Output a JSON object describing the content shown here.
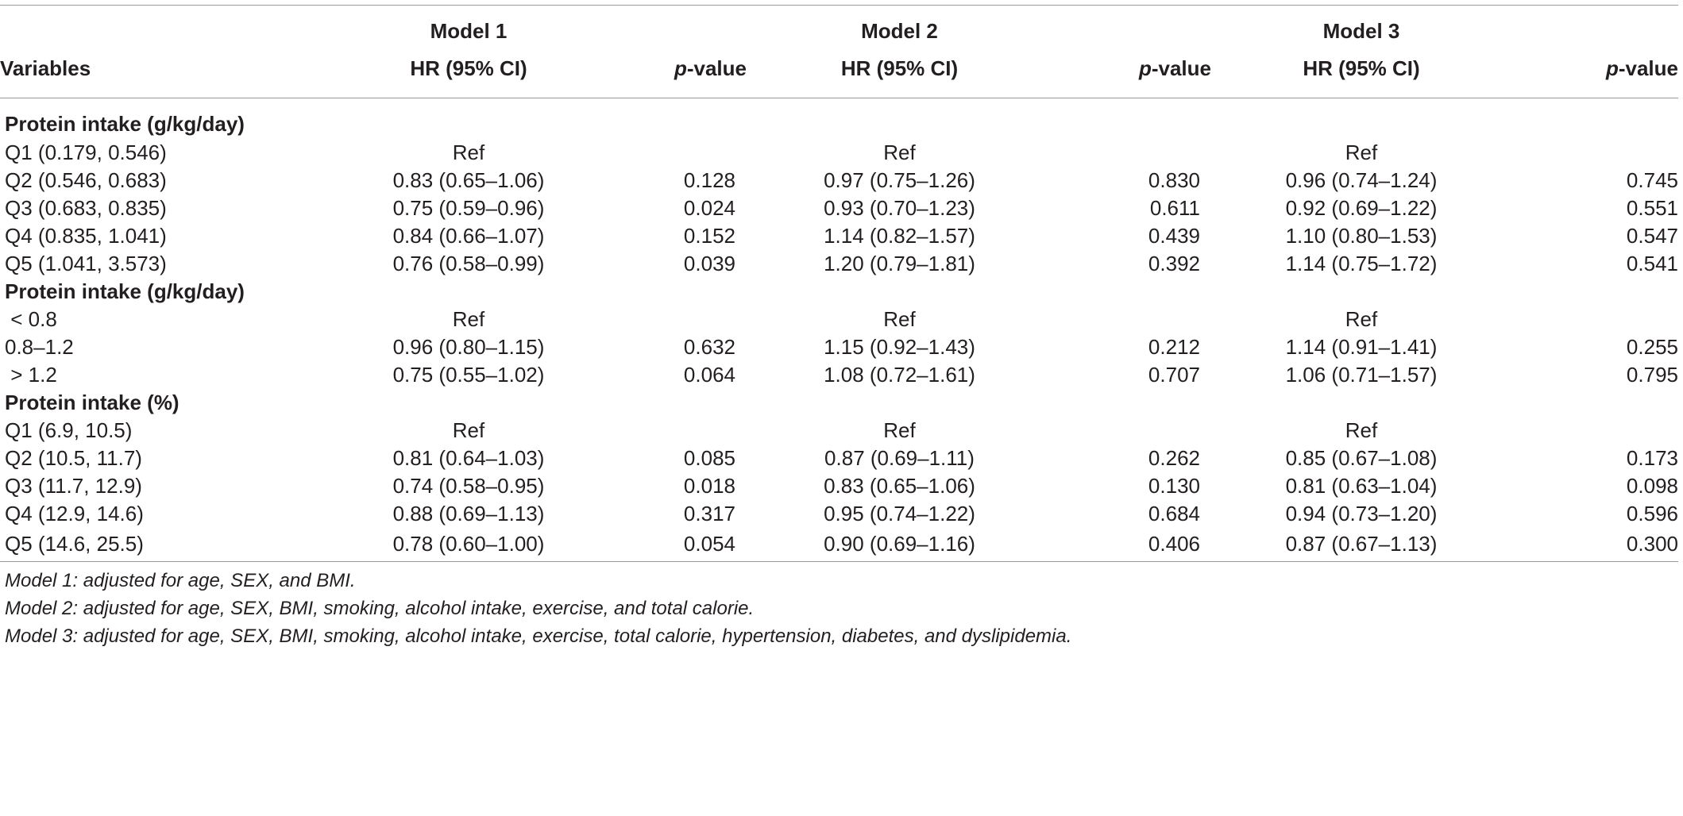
{
  "header": {
    "variables": "Variables",
    "models": [
      "Model 1",
      "Model 2",
      "Model 3"
    ],
    "hr": "HR (95% CI)",
    "p_italic": "p",
    "p_rest": "-value"
  },
  "sections": [
    {
      "title": "Protein intake (g/kg/day)",
      "rows": [
        {
          "label": "Q1 (0.179, 0.546)",
          "m1_hr": "Ref",
          "m1_p": "",
          "m2_hr": "Ref",
          "m2_p": "",
          "m3_hr": "Ref",
          "m3_p": ""
        },
        {
          "label": "Q2 (0.546, 0.683)",
          "m1_hr": "0.83 (0.65–1.06)",
          "m1_p": "0.128",
          "m2_hr": "0.97 (0.75–1.26)",
          "m2_p": "0.830",
          "m3_hr": "0.96 (0.74–1.24)",
          "m3_p": "0.745"
        },
        {
          "label": "Q3 (0.683, 0.835)",
          "m1_hr": "0.75 (0.59–0.96)",
          "m1_p": "0.024",
          "m2_hr": "0.93 (0.70–1.23)",
          "m2_p": "0.611",
          "m3_hr": "0.92 (0.69–1.22)",
          "m3_p": "0.551"
        },
        {
          "label": "Q4 (0.835, 1.041)",
          "m1_hr": "0.84 (0.66–1.07)",
          "m1_p": "0.152",
          "m2_hr": "1.14 (0.82–1.57)",
          "m2_p": "0.439",
          "m3_hr": "1.10 (0.80–1.53)",
          "m3_p": "0.547"
        },
        {
          "label": "Q5 (1.041, 3.573)",
          "m1_hr": "0.76 (0.58–0.99)",
          "m1_p": "0.039",
          "m2_hr": "1.20 (0.79–1.81)",
          "m2_p": "0.392",
          "m3_hr": "1.14 (0.75–1.72)",
          "m3_p": "0.541"
        }
      ]
    },
    {
      "title": "Protein intake (g/kg/day)",
      "rows": [
        {
          "label": " < 0.8",
          "m1_hr": "Ref",
          "m1_p": "",
          "m2_hr": "Ref",
          "m2_p": "",
          "m3_hr": "Ref",
          "m3_p": ""
        },
        {
          "label": "0.8–1.2",
          "m1_hr": "0.96 (0.80–1.15)",
          "m1_p": "0.632",
          "m2_hr": "1.15 (0.92–1.43)",
          "m2_p": "0.212",
          "m3_hr": "1.14 (0.91–1.41)",
          "m3_p": "0.255"
        },
        {
          "label": " > 1.2",
          "m1_hr": "0.75 (0.55–1.02)",
          "m1_p": "0.064",
          "m2_hr": "1.08 (0.72–1.61)",
          "m2_p": "0.707",
          "m3_hr": "1.06 (0.71–1.57)",
          "m3_p": "0.795"
        }
      ]
    },
    {
      "title": "Protein intake (%)",
      "rows": [
        {
          "label": "Q1 (6.9, 10.5)",
          "m1_hr": "Ref",
          "m1_p": "",
          "m2_hr": "Ref",
          "m2_p": "",
          "m3_hr": "Ref",
          "m3_p": ""
        },
        {
          "label": "Q2 (10.5, 11.7)",
          "m1_hr": "0.81 (0.64–1.03)",
          "m1_p": "0.085",
          "m2_hr": "0.87 (0.69–1.11)",
          "m2_p": "0.262",
          "m3_hr": "0.85 (0.67–1.08)",
          "m3_p": "0.173"
        },
        {
          "label": "Q3 (11.7, 12.9)",
          "m1_hr": "0.74 (0.58–0.95)",
          "m1_p": "0.018",
          "m2_hr": "0.83 (0.65–1.06)",
          "m2_p": "0.130",
          "m3_hr": "0.81 (0.63–1.04)",
          "m3_p": "0.098"
        },
        {
          "label": "Q4 (12.9, 14.6)",
          "m1_hr": "0.88 (0.69–1.13)",
          "m1_p": "0.317",
          "m2_hr": "0.95 (0.74–1.22)",
          "m2_p": "0.684",
          "m3_hr": "0.94 (0.73–1.20)",
          "m3_p": "0.596"
        },
        {
          "label": "Q5 (14.6, 25.5)",
          "m1_hr": "0.78 (0.60–1.00)",
          "m1_p": "0.054",
          "m2_hr": "0.90 (0.69–1.16)",
          "m2_p": "0.406",
          "m3_hr": "0.87 (0.67–1.13)",
          "m3_p": "0.300"
        }
      ]
    }
  ],
  "footnotes": [
    "Model 1: adjusted for age, SEX, and BMI.",
    "Model 2: adjusted for age, SEX, BMI, smoking, alcohol intake, exercise, and total calorie.",
    "Model 3: adjusted for age, SEX, BMI, smoking, alcohol intake, exercise, total calorie, hypertension, diabetes, and dyslipidemia."
  ]
}
